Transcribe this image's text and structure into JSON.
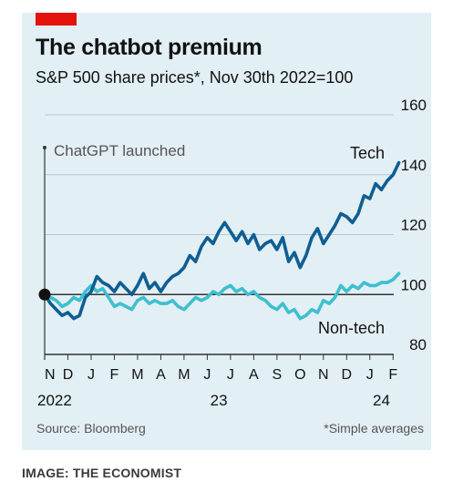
{
  "credit": "IMAGE: THE ECONOMIST",
  "colors": {
    "background": "#e2eff4",
    "brand_red": "#e3120b",
    "tech": "#0f5e93",
    "non_tech": "#3ebfcf",
    "axis": "#333333",
    "grid": "#b9c9d0"
  },
  "chart_data": {
    "type": "line",
    "title": "The chatbot premium",
    "subtitle": "S&P 500 share prices*, Nov 30th 2022=100",
    "source": "Source: Bloomberg",
    "footnote": "*Simple averages",
    "ylim": [
      80,
      160
    ],
    "yticks": [
      80,
      100,
      120,
      140,
      160
    ],
    "y_axis_side": "right",
    "grid": true,
    "xlim": [
      0,
      15.5
    ],
    "x_tick_labels": [
      "N",
      "D",
      "J",
      "F",
      "M",
      "A",
      "M",
      "J",
      "J",
      "A",
      "S",
      "O",
      "N",
      "D",
      "J",
      "F"
    ],
    "x_tick_positions": [
      0,
      1,
      2,
      3,
      4,
      5,
      6,
      7,
      8,
      9,
      10,
      11,
      12,
      13,
      14,
      15
    ],
    "year_labels": [
      {
        "label": "2022",
        "x": 0.5
      },
      {
        "label": "23",
        "x": 7.5
      },
      {
        "label": "24",
        "x": 14.5
      }
    ],
    "baseline": 100,
    "annotation": {
      "label": "ChatGPT launched",
      "x": 0
    },
    "series": [
      {
        "name": "Tech",
        "color": "#0f5e93",
        "x": [
          0,
          0.25,
          0.5,
          0.75,
          1,
          1.25,
          1.5,
          1.75,
          2,
          2.25,
          2.5,
          2.75,
          3,
          3.25,
          3.5,
          3.75,
          4,
          4.25,
          4.5,
          4.75,
          5,
          5.25,
          5.5,
          5.75,
          6,
          6.25,
          6.5,
          6.75,
          7,
          7.25,
          7.5,
          7.75,
          8,
          8.25,
          8.5,
          8.75,
          9,
          9.25,
          9.5,
          9.75,
          10,
          10.25,
          10.5,
          10.75,
          11,
          11.25,
          11.5,
          11.75,
          12,
          12.25,
          12.5,
          12.75,
          13,
          13.25,
          13.5,
          13.75,
          14,
          14.25,
          14.5,
          14.75,
          15,
          15.25
        ],
        "values": [
          100,
          97,
          95,
          93,
          94,
          92,
          93,
          99,
          101,
          106,
          104,
          103,
          101,
          104,
          102,
          100,
          103,
          107,
          102,
          104,
          101,
          104,
          106,
          107,
          109,
          113,
          111,
          116,
          119,
          117,
          121,
          124,
          121,
          118,
          121,
          117,
          120,
          115,
          117,
          118,
          115,
          119,
          111,
          114,
          109,
          113,
          119,
          122,
          117,
          120,
          123,
          127,
          126,
          124,
          127,
          133,
          132,
          137,
          135,
          138,
          140,
          144
        ]
      },
      {
        "name": "Non-tech",
        "color": "#3ebfcf",
        "x": [
          0,
          0.25,
          0.5,
          0.75,
          1,
          1.25,
          1.5,
          1.75,
          2,
          2.25,
          2.5,
          2.75,
          3,
          3.25,
          3.5,
          3.75,
          4,
          4.25,
          4.5,
          4.75,
          5,
          5.25,
          5.5,
          5.75,
          6,
          6.25,
          6.5,
          6.75,
          7,
          7.25,
          7.5,
          7.75,
          8,
          8.25,
          8.5,
          8.75,
          9,
          9.25,
          9.5,
          9.75,
          10,
          10.25,
          10.5,
          10.75,
          11,
          11.25,
          11.5,
          11.75,
          12,
          12.25,
          12.5,
          12.75,
          13,
          13.25,
          13.5,
          13.75,
          14,
          14.25,
          14.5,
          14.75,
          15,
          15.25
        ],
        "values": [
          100,
          99,
          98,
          96,
          97,
          99,
          98,
          101,
          103,
          101,
          102,
          99,
          96,
          97,
          96,
          95,
          98,
          99,
          97,
          98,
          97,
          97,
          98,
          96,
          95,
          97,
          99,
          98,
          99,
          101,
          100,
          102,
          103,
          101,
          102,
          100,
          101,
          99,
          98,
          96,
          95,
          97,
          94,
          95,
          92,
          93,
          95,
          94,
          98,
          97,
          99,
          103,
          101,
          103,
          102,
          104,
          103,
          103,
          104,
          104,
          105,
          107
        ]
      }
    ]
  }
}
